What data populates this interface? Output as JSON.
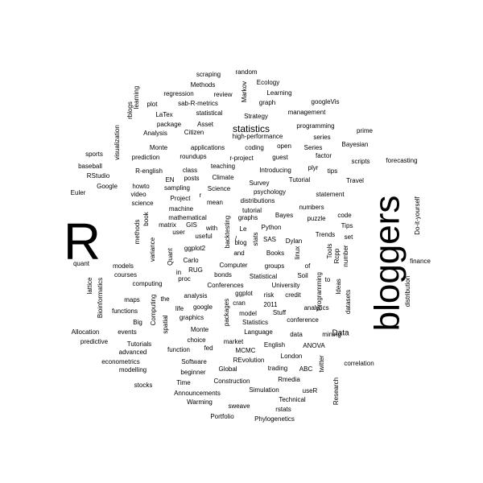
{
  "words": [
    {
      "text": "R",
      "size": "big"
    },
    {
      "text": "bloggers",
      "size": "big"
    },
    {
      "text": "statistics",
      "size": "medium"
    },
    {
      "text": "Data",
      "size": "medium"
    },
    {
      "text": "scraping",
      "size": "small"
    },
    {
      "text": "random",
      "size": "small"
    },
    {
      "text": "Methods",
      "size": "small"
    },
    {
      "text": "Ecology",
      "size": "small"
    },
    {
      "text": "Markov",
      "size": "small"
    },
    {
      "text": "regression",
      "size": "small"
    },
    {
      "text": "review",
      "size": "small"
    },
    {
      "text": "Learning",
      "size": "small"
    },
    {
      "text": "learning",
      "size": "small"
    },
    {
      "text": "plot",
      "size": "small"
    },
    {
      "text": "sab-R-metrics",
      "size": "small"
    },
    {
      "text": "graph",
      "size": "small"
    },
    {
      "text": "googleVis",
      "size": "small"
    },
    {
      "text": "rblogs",
      "size": "small"
    },
    {
      "text": "LaTex",
      "size": "small"
    },
    {
      "text": "statistical",
      "size": "small"
    },
    {
      "text": "Strategy",
      "size": "small"
    },
    {
      "text": "management",
      "size": "small"
    },
    {
      "text": "package",
      "size": "small"
    },
    {
      "text": "Asset",
      "size": "small"
    },
    {
      "text": "programming",
      "size": "small"
    },
    {
      "text": "visualization",
      "size": "small"
    },
    {
      "text": "Analysis",
      "size": "small"
    },
    {
      "text": "Citizen",
      "size": "small"
    },
    {
      "text": "high-performance",
      "size": "small"
    },
    {
      "text": "series",
      "size": "small"
    },
    {
      "text": "prime",
      "size": "small"
    },
    {
      "text": "Monte",
      "size": "small"
    },
    {
      "text": "applications",
      "size": "small"
    },
    {
      "text": "coding",
      "size": "small"
    },
    {
      "text": "open",
      "size": "small"
    },
    {
      "text": "Series",
      "size": "small"
    },
    {
      "text": "Bayesian",
      "size": "small"
    },
    {
      "text": "sports",
      "size": "small"
    },
    {
      "text": "prediction",
      "size": "small"
    },
    {
      "text": "roundups",
      "size": "small"
    },
    {
      "text": "r-project",
      "size": "small"
    },
    {
      "text": "guest",
      "size": "small"
    },
    {
      "text": "factor",
      "size": "small"
    },
    {
      "text": "scripts",
      "size": "small"
    },
    {
      "text": "forecasting",
      "size": "small"
    },
    {
      "text": "baseball",
      "size": "small"
    },
    {
      "text": "teaching",
      "size": "small"
    },
    {
      "text": "plyr",
      "size": "small"
    },
    {
      "text": "R-english",
      "size": "small"
    },
    {
      "text": "class",
      "size": "small"
    },
    {
      "text": "Introducing",
      "size": "small"
    },
    {
      "text": "tips",
      "size": "small"
    },
    {
      "text": "RStudio",
      "size": "small"
    },
    {
      "text": "EN",
      "size": "small"
    },
    {
      "text": "posts",
      "size": "small"
    },
    {
      "text": "Climate",
      "size": "small"
    },
    {
      "text": "Tutorial",
      "size": "small"
    },
    {
      "text": "Travel",
      "size": "small"
    },
    {
      "text": "Google",
      "size": "small"
    },
    {
      "text": "howto",
      "size": "small"
    },
    {
      "text": "sampling",
      "size": "small"
    },
    {
      "text": "Science",
      "size": "small"
    },
    {
      "text": "Survey",
      "size": "small"
    },
    {
      "text": "Euler",
      "size": "small"
    },
    {
      "text": "video",
      "size": "small"
    },
    {
      "text": "r",
      "size": "small"
    },
    {
      "text": "psychology",
      "size": "small"
    },
    {
      "text": "statement",
      "size": "small"
    },
    {
      "text": "Do-it-yourself",
      "size": "small"
    },
    {
      "text": "science",
      "size": "small"
    },
    {
      "text": "Project",
      "size": "small"
    },
    {
      "text": "distributions",
      "size": "small"
    },
    {
      "text": "mean",
      "size": "small"
    },
    {
      "text": "machine",
      "size": "small"
    },
    {
      "text": "numbers",
      "size": "small"
    },
    {
      "text": "tutorial",
      "size": "small"
    },
    {
      "text": "code",
      "size": "small"
    },
    {
      "text": "mathematical",
      "size": "small"
    },
    {
      "text": "Bayes",
      "size": "small"
    },
    {
      "text": "puzzle",
      "size": "small"
    },
    {
      "text": "book",
      "size": "small"
    },
    {
      "text": "graphs",
      "size": "small"
    },
    {
      "text": "Le",
      "size": "small"
    },
    {
      "text": "Tips",
      "size": "small"
    },
    {
      "text": "matrix",
      "size": "small"
    },
    {
      "text": "GIS",
      "size": "small"
    },
    {
      "text": "Python",
      "size": "small"
    },
    {
      "text": "methods",
      "size": "small"
    },
    {
      "text": "user",
      "size": "small"
    },
    {
      "text": "useful",
      "size": "small"
    },
    {
      "text": "with",
      "size": "small"
    },
    {
      "text": "backtesting",
      "size": "small"
    },
    {
      "text": "/",
      "size": "small"
    },
    {
      "text": "Trends",
      "size": "small"
    },
    {
      "text": "set",
      "size": "small"
    },
    {
      "text": "SAS",
      "size": "small"
    },
    {
      "text": "Dylan",
      "size": "small"
    },
    {
      "text": "stats",
      "size": "small"
    },
    {
      "text": "blog",
      "size": "small"
    },
    {
      "text": "ggplot2",
      "size": "small"
    },
    {
      "text": "linux",
      "size": "small"
    },
    {
      "text": "Tools",
      "size": "small"
    },
    {
      "text": "Rcpp",
      "size": "small"
    },
    {
      "text": "number",
      "size": "small"
    },
    {
      "text": "Books",
      "size": "small"
    },
    {
      "text": "and",
      "size": "small"
    },
    {
      "text": "finance",
      "size": "small"
    },
    {
      "text": "quant",
      "size": "small"
    },
    {
      "text": "variance",
      "size": "small"
    },
    {
      "text": "Carlo",
      "size": "small"
    },
    {
      "text": "models",
      "size": "small"
    },
    {
      "text": "Quant",
      "size": "small"
    },
    {
      "text": "RUG",
      "size": "small"
    },
    {
      "text": "Computer",
      "size": "small"
    },
    {
      "text": "groups",
      "size": "small"
    },
    {
      "text": "of",
      "size": "small"
    },
    {
      "text": "courses",
      "size": "small"
    },
    {
      "text": "in",
      "size": "small"
    },
    {
      "text": "proc",
      "size": "small"
    },
    {
      "text": "bonds",
      "size": "small"
    },
    {
      "text": "Statistical",
      "size": "small"
    },
    {
      "text": "Soil",
      "size": "small"
    },
    {
      "text": "Programming",
      "size": "small"
    },
    {
      "text": "to",
      "size": "small"
    },
    {
      "text": "Ideas",
      "size": "small"
    },
    {
      "text": "lattice",
      "size": "small"
    },
    {
      "text": "computing",
      "size": "small"
    },
    {
      "text": "Conferences",
      "size": "small"
    },
    {
      "text": "University",
      "size": "small"
    },
    {
      "text": "distribution",
      "size": "small"
    },
    {
      "text": "ggplot",
      "size": "small"
    },
    {
      "text": "Bioinformatics",
      "size": "small"
    },
    {
      "text": "maps",
      "size": "small"
    },
    {
      "text": "the",
      "size": "small"
    },
    {
      "text": "analysis",
      "size": "small"
    },
    {
      "text": "risk",
      "size": "small"
    },
    {
      "text": "credit",
      "size": "small"
    },
    {
      "text": "functions",
      "size": "small"
    },
    {
      "text": "Computing",
      "size": "small"
    },
    {
      "text": "life",
      "size": "small"
    },
    {
      "text": "google",
      "size": "small"
    },
    {
      "text": "cran",
      "size": "small"
    },
    {
      "text": "2011",
      "size": "small"
    },
    {
      "text": "analytics",
      "size": "small"
    },
    {
      "text": "Big",
      "size": "small"
    },
    {
      "text": "graphics",
      "size": "small"
    },
    {
      "text": "packages",
      "size": "small"
    },
    {
      "text": "model",
      "size": "small"
    },
    {
      "text": "Stuff",
      "size": "small"
    },
    {
      "text": "datasets",
      "size": "small"
    },
    {
      "text": "spatial",
      "size": "small"
    },
    {
      "text": "Statistics",
      "size": "small"
    },
    {
      "text": "conference",
      "size": "small"
    },
    {
      "text": "Allocation",
      "size": "small"
    },
    {
      "text": "events",
      "size": "small"
    },
    {
      "text": "Monte",
      "size": "small"
    },
    {
      "text": "Language",
      "size": "small"
    },
    {
      "text": "data",
      "size": "small"
    },
    {
      "text": "mining",
      "size": "small"
    },
    {
      "text": "predictive",
      "size": "small"
    },
    {
      "text": "Tutorials",
      "size": "small"
    },
    {
      "text": "choice",
      "size": "small"
    },
    {
      "text": "market",
      "size": "small"
    },
    {
      "text": "English",
      "size": "small"
    },
    {
      "text": "ANOVA",
      "size": "small"
    },
    {
      "text": "advanced",
      "size": "small"
    },
    {
      "text": "function",
      "size": "small"
    },
    {
      "text": "fed",
      "size": "small"
    },
    {
      "text": "MCMC",
      "size": "small"
    },
    {
      "text": "London",
      "size": "small"
    },
    {
      "text": "econometrics",
      "size": "small"
    },
    {
      "text": "Software",
      "size": "small"
    },
    {
      "text": "REvolution",
      "size": "small"
    },
    {
      "text": "twitter",
      "size": "small"
    },
    {
      "text": "correlation",
      "size": "small"
    },
    {
      "text": "modelling",
      "size": "small"
    },
    {
      "text": "Global",
      "size": "small"
    },
    {
      "text": "trading",
      "size": "small"
    },
    {
      "text": "ABC",
      "size": "small"
    },
    {
      "text": "beginner",
      "size": "small"
    },
    {
      "text": "stocks",
      "size": "small"
    },
    {
      "text": "Time",
      "size": "small"
    },
    {
      "text": "Construction",
      "size": "small"
    },
    {
      "text": "Rmedia",
      "size": "small"
    },
    {
      "text": "Announcements",
      "size": "small"
    },
    {
      "text": "Simulation",
      "size": "small"
    },
    {
      "text": "useR",
      "size": "small"
    },
    {
      "text": "Warming",
      "size": "small"
    },
    {
      "text": "Technical",
      "size": "small"
    },
    {
      "text": "Research",
      "size": "small"
    },
    {
      "text": "sweave",
      "size": "small"
    },
    {
      "text": "rstats",
      "size": "small"
    },
    {
      "text": "Portfolio",
      "size": "small"
    },
    {
      "text": "Phylogenetics",
      "size": "small"
    }
  ]
}
